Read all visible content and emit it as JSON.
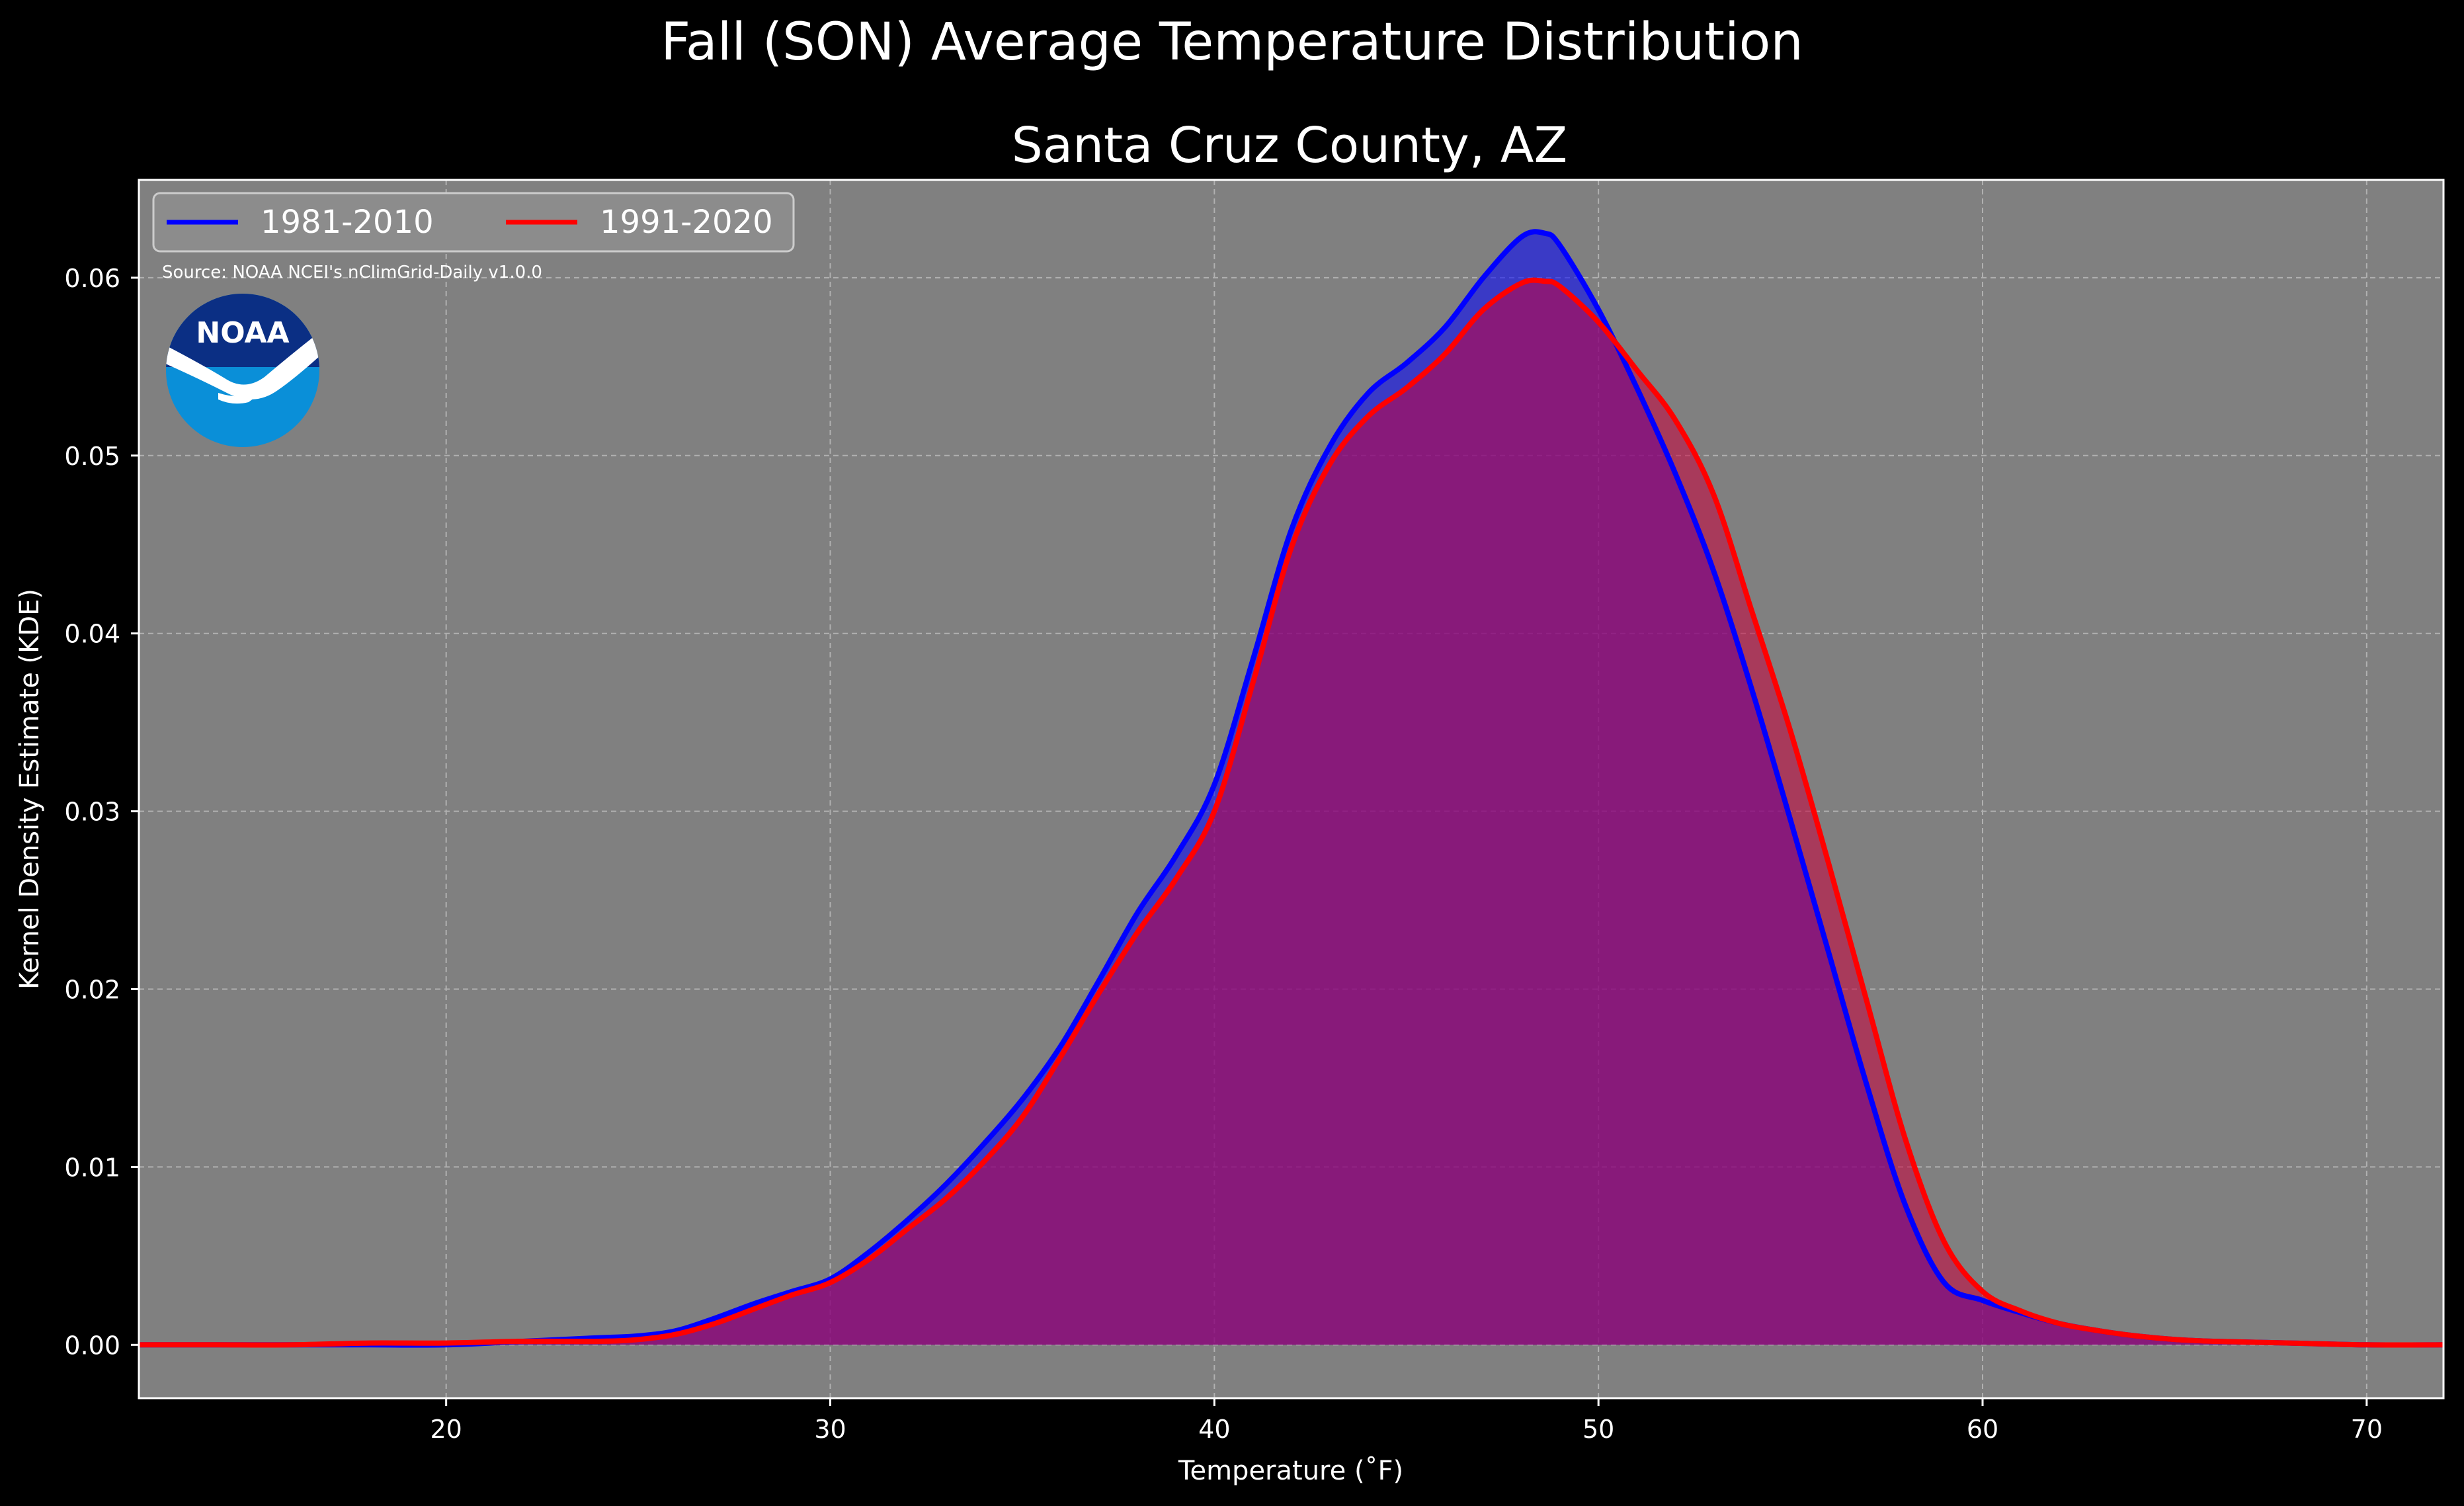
{
  "suptitle": "Fall (SON) Average Temperature Distribution",
  "chart_data": {
    "type": "area",
    "title": "Santa Cruz County, AZ",
    "xlabel": "Temperature (˚F)",
    "ylabel": "Kernel Density Estimate (KDE)",
    "xlim": [
      12,
      72
    ],
    "ylim": [
      -0.003,
      0.0655
    ],
    "x_ticks": [
      20,
      30,
      40,
      50,
      60,
      70
    ],
    "y_ticks": [
      0.0,
      0.01,
      0.02,
      0.03,
      0.04,
      0.05,
      0.06
    ],
    "x_tick_labels": [
      "20",
      "30",
      "40",
      "50",
      "60",
      "70"
    ],
    "y_tick_labels": [
      "0.00",
      "0.01",
      "0.02",
      "0.03",
      "0.04",
      "0.05",
      "0.06"
    ],
    "grid": true,
    "legend_placement": "top-left",
    "background": "#808080",
    "annotation": "Source: NOAA NCEI's nClimGrid-Daily v1.0.0",
    "logo_text": "NOAA",
    "series": [
      {
        "name": "1981-2010",
        "color": "#0000ff",
        "fill": "rgba(0,0,255,0.55)",
        "x": [
          12,
          14,
          16,
          18,
          20,
          22,
          24,
          25,
          26,
          27,
          28,
          29,
          30,
          31,
          32,
          33,
          34,
          35,
          36,
          37,
          38,
          39,
          40,
          41,
          42,
          43,
          44,
          45,
          46,
          47,
          48,
          48.6,
          49,
          50,
          51,
          52,
          53,
          54,
          55,
          56,
          57,
          58,
          59,
          60,
          61,
          62,
          63,
          64,
          65,
          66,
          68,
          70,
          72
        ],
        "y": [
          0.0,
          0.0,
          0.0,
          0.0,
          0.0,
          0.0002,
          0.0004,
          0.0005,
          0.0008,
          0.0015,
          0.0023,
          0.003,
          0.0037,
          0.0052,
          0.007,
          0.009,
          0.0113,
          0.0138,
          0.0168,
          0.0205,
          0.0243,
          0.0275,
          0.0315,
          0.0385,
          0.0458,
          0.0505,
          0.0535,
          0.0552,
          0.0572,
          0.06,
          0.0623,
          0.0625,
          0.0618,
          0.0582,
          0.0538,
          0.049,
          0.0435,
          0.0368,
          0.0295,
          0.022,
          0.0145,
          0.0078,
          0.0035,
          0.0025,
          0.0018,
          0.0012,
          0.0008,
          0.0005,
          0.0003,
          0.0002,
          0.0001,
          0.0,
          0.0
        ]
      },
      {
        "name": "1991-2020",
        "color": "#ff0000",
        "fill": "rgba(200,0,60,0.55)",
        "x": [
          12,
          14,
          16,
          18,
          20,
          22,
          24,
          25,
          26,
          27,
          28,
          29,
          30,
          31,
          32,
          33,
          34,
          35,
          36,
          37,
          38,
          39,
          40,
          41,
          42,
          43,
          44,
          45,
          46,
          47,
          48,
          48.6,
          49,
          50,
          51,
          52,
          53,
          54,
          55,
          56,
          57,
          58,
          59,
          60,
          61,
          62,
          63,
          64,
          65,
          66,
          68,
          70,
          72
        ],
        "y": [
          0.0,
          0.0,
          0.0,
          0.0001,
          0.0001,
          0.0002,
          0.0002,
          0.0003,
          0.0006,
          0.0012,
          0.002,
          0.0028,
          0.0035,
          0.0048,
          0.0065,
          0.0082,
          0.0103,
          0.0128,
          0.0162,
          0.0198,
          0.0232,
          0.0262,
          0.03,
          0.0372,
          0.0448,
          0.0495,
          0.0522,
          0.0538,
          0.0557,
          0.0582,
          0.0597,
          0.0598,
          0.0595,
          0.0575,
          0.0548,
          0.052,
          0.0478,
          0.0412,
          0.0345,
          0.027,
          0.0192,
          0.0115,
          0.0058,
          0.003,
          0.0019,
          0.0012,
          0.0008,
          0.0005,
          0.0003,
          0.0002,
          0.0001,
          0.0,
          0.0
        ]
      }
    ]
  }
}
